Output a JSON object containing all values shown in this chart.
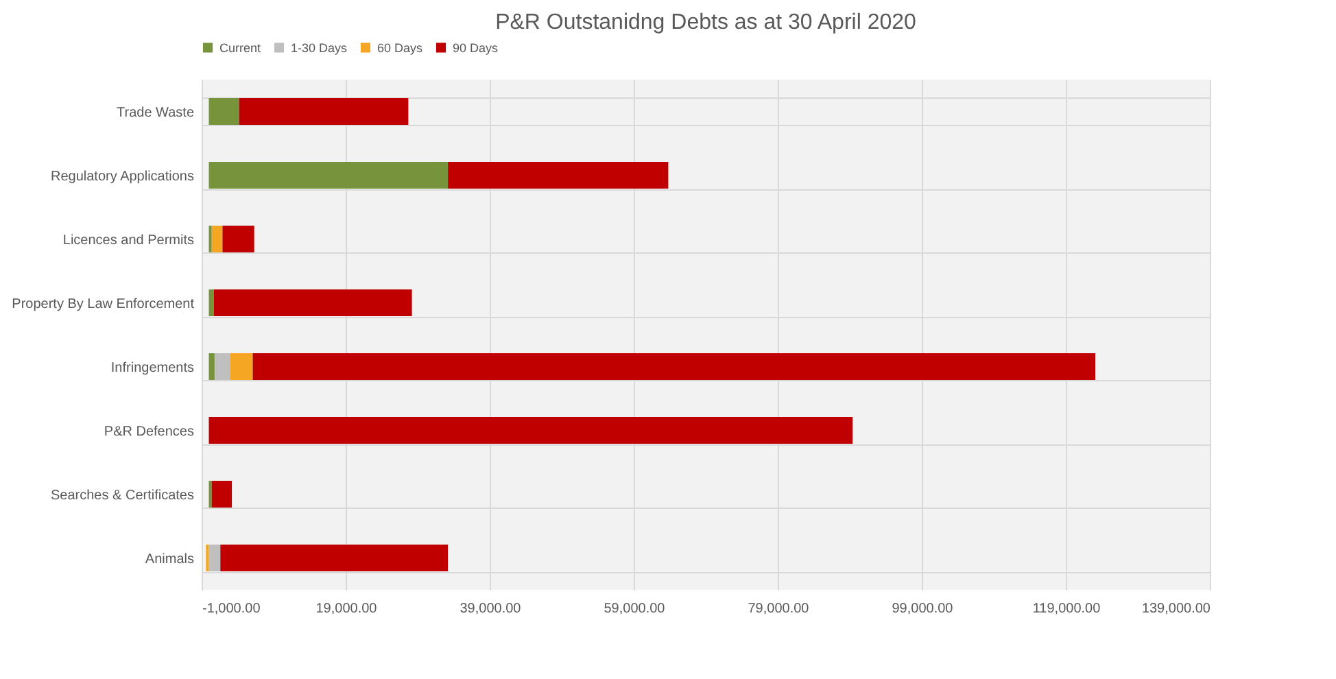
{
  "chart_data": {
    "type": "bar",
    "orientation": "horizontal",
    "stacked": true,
    "title": "P&R Outstanidng Debts as at 30 April 2020",
    "categories": [
      "Trade Waste",
      "Regulatory Applications",
      "Licences and Permits",
      "Property By Law Enforcement",
      "Infringements",
      "P&R Defences",
      "Searches & Certificates",
      "Animals"
    ],
    "series": [
      {
        "name": "Current",
        "color": "#77933c",
        "values": [
          4200,
          33200,
          400,
          700,
          800,
          0,
          400,
          0
        ]
      },
      {
        "name": "1-30 Days",
        "color": "#bfbfbf",
        "values": [
          0,
          0,
          0,
          0,
          2200,
          0,
          0,
          1600
        ]
      },
      {
        "name": "60 Days",
        "color": "#f5a623",
        "values": [
          0,
          0,
          1500,
          0,
          3100,
          0,
          0,
          -400
        ]
      },
      {
        "name": "90 Days",
        "color": "#c00000",
        "values": [
          23500,
          30600,
          4400,
          27500,
          117000,
          89400,
          2800,
          31600
        ]
      }
    ],
    "xlim": [
      -1000,
      139000
    ],
    "xticks": [
      {
        "value": -1000,
        "label": "-1,000.00"
      },
      {
        "value": 19000,
        "label": "19,000.00"
      },
      {
        "value": 39000,
        "label": "39,000.00"
      },
      {
        "value": 59000,
        "label": "59,000.00"
      },
      {
        "value": 79000,
        "label": "79,000.00"
      },
      {
        "value": 99000,
        "label": "99,000.00"
      },
      {
        "value": 119000,
        "label": "119,000.00"
      },
      {
        "value": 139000,
        "label": "139,000.00"
      }
    ],
    "grid": true,
    "legend": "top"
  }
}
